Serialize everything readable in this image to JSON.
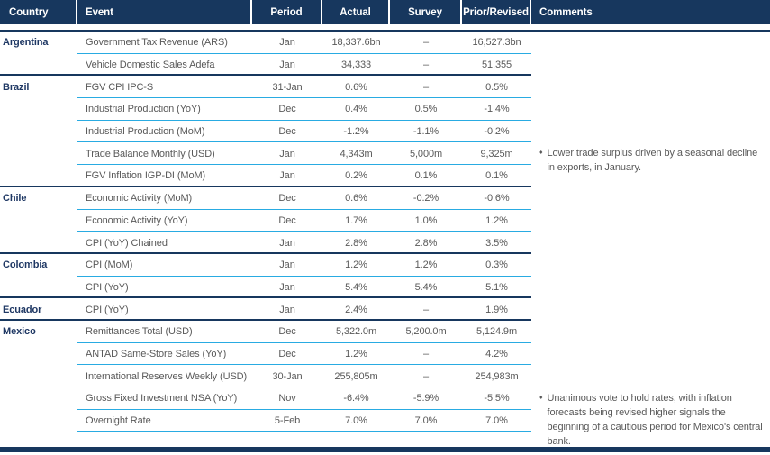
{
  "table": {
    "columns": [
      "Country",
      "Event",
      "Period",
      "Actual",
      "Survey",
      "Prior/Revised",
      "Comments"
    ],
    "groups": [
      {
        "country": "Argentina",
        "rows": [
          {
            "event": "Government Tax Revenue (ARS)",
            "period": "Jan",
            "actual": "18,337.6bn",
            "survey": "–",
            "prior": "16,527.3bn"
          },
          {
            "event": "Vehicle Domestic Sales Adefa",
            "period": "Jan",
            "actual": "34,333",
            "survey": "–",
            "prior": "51,355"
          }
        ]
      },
      {
        "country": "Brazil",
        "rows": [
          {
            "event": "FGV CPI IPC-S",
            "period": "31-Jan",
            "actual": "0.6%",
            "survey": "–",
            "prior": "0.5%"
          },
          {
            "event": "Industrial Production (YoY)",
            "period": "Dec",
            "actual": "0.4%",
            "survey": "0.5%",
            "prior": "-1.4%"
          },
          {
            "event": "Industrial Production (MoM)",
            "period": "Dec",
            "actual": "-1.2%",
            "survey": "-1.1%",
            "prior": "-0.2%"
          },
          {
            "event": "Trade Balance Monthly (USD)",
            "period": "Jan",
            "actual": "4,343m",
            "survey": "5,000m",
            "prior": "9,325m",
            "comment": "Lower trade surplus driven by a seasonal decline in exports, in January."
          },
          {
            "event": "FGV Inflation IGP-DI (MoM)",
            "period": "Jan",
            "actual": "0.2%",
            "survey": "0.1%",
            "prior": "0.1%"
          }
        ]
      },
      {
        "country": "Chile",
        "rows": [
          {
            "event": "Economic Activity (MoM)",
            "period": "Dec",
            "actual": "0.6%",
            "survey": "-0.2%",
            "prior": "-0.6%"
          },
          {
            "event": "Economic Activity (YoY)",
            "period": "Dec",
            "actual": "1.7%",
            "survey": "1.0%",
            "prior": "1.2%"
          },
          {
            "event": "CPI (YoY) Chained",
            "period": "Jan",
            "actual": "2.8%",
            "survey": "2.8%",
            "prior": "3.5%"
          }
        ]
      },
      {
        "country": "Colombia",
        "rows": [
          {
            "event": "CPI (MoM)",
            "period": "Jan",
            "actual": "1.2%",
            "survey": "1.2%",
            "prior": "0.3%"
          },
          {
            "event": "CPI (YoY)",
            "period": "Jan",
            "actual": "5.4%",
            "survey": "5.4%",
            "prior": "5.1%"
          }
        ]
      },
      {
        "country": "Ecuador",
        "rows": [
          {
            "event": "CPI (YoY)",
            "period": "Jan",
            "actual": "2.4%",
            "survey": "–",
            "prior": "1.9%"
          }
        ]
      },
      {
        "country": "Mexico",
        "rows": [
          {
            "event": "Remittances Total (USD)",
            "period": "Dec",
            "actual": "5,322.0m",
            "survey": "5,200.0m",
            "prior": "5,124.9m"
          },
          {
            "event": "ANTAD Same-Store Sales (YoY)",
            "period": "Dec",
            "actual": "1.2%",
            "survey": "–",
            "prior": "4.2%"
          },
          {
            "event": "International Reserves Weekly (USD)",
            "period": "30-Jan",
            "actual": "255,805m",
            "survey": "–",
            "prior": "254,983m"
          },
          {
            "event": "Gross Fixed Investment NSA (YoY)",
            "period": "Nov",
            "actual": "-6.4%",
            "survey": "-5.9%",
            "prior": "-5.5%",
            "comment": "Unanimous vote to hold rates, with inflation forecasts being revised higher signals the beginning of a cautious period for Mexico's central bank."
          },
          {
            "event": "Overnight Rate",
            "period": "5-Feb",
            "actual": "7.0%",
            "survey": "7.0%",
            "prior": "7.0%"
          }
        ]
      }
    ]
  },
  "icons": {
    "comment_bullet": "♦"
  },
  "colors": {
    "header_bg": "#17375e",
    "header_text": "#ffffff",
    "country_text": "#1f3864",
    "body_text": "#595959",
    "divider_cyan": "#29abe2",
    "divider_navy": "#17375e",
    "page_bg": "#ffffff"
  }
}
